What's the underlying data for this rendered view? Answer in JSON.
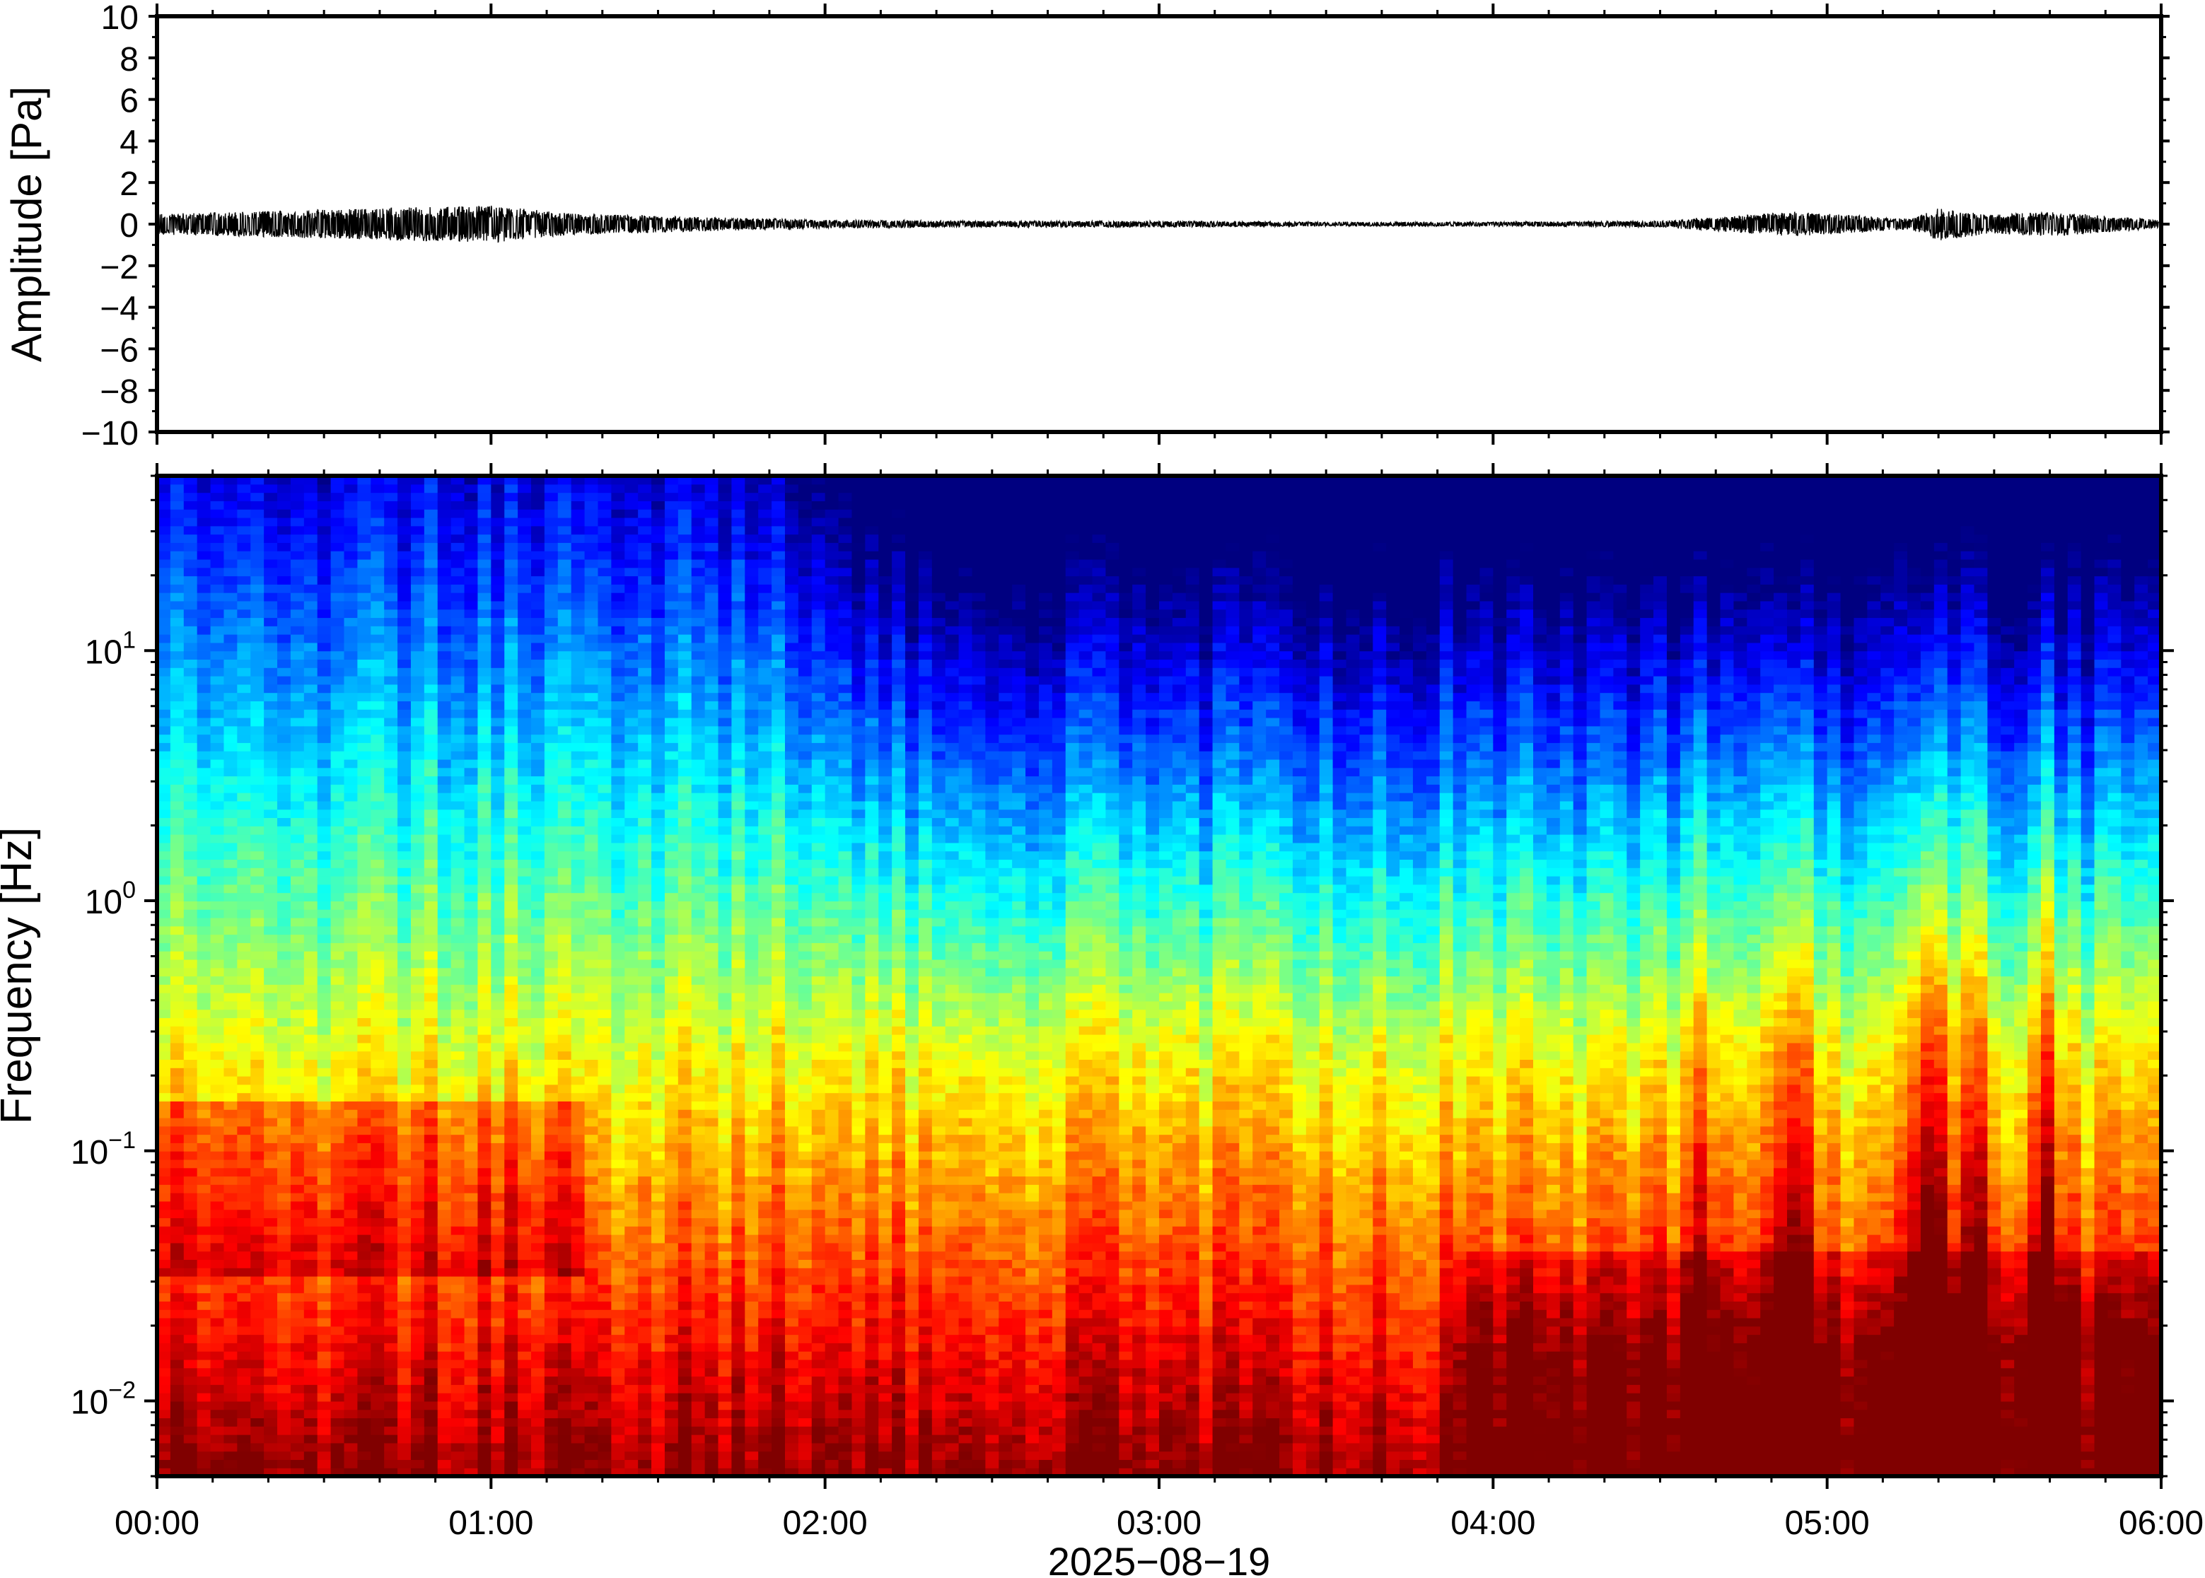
{
  "chart_data": [
    {
      "type": "line",
      "ylabel": "Amplitude [Pa]",
      "ylim": [
        -10,
        10
      ],
      "yticks": [
        "10",
        "8",
        "6",
        "4",
        "2",
        "0",
        "−2",
        "−4",
        "−6",
        "−8",
        "−10"
      ],
      "xlim": [
        "00:00",
        "06:00"
      ],
      "grid": false,
      "series": [
        {
          "x": [
            "00:00",
            "00:15",
            "00:30",
            "00:45",
            "01:00",
            "01:15",
            "01:30",
            "02:00",
            "02:30",
            "03:00",
            "03:30",
            "04:00",
            "04:30",
            "04:54",
            "05:15",
            "05:20",
            "05:30",
            "05:40",
            "06:00"
          ],
          "envelope": [
            0.5,
            0.6,
            0.7,
            0.8,
            0.9,
            0.5,
            0.4,
            0.2,
            0.15,
            0.15,
            0.1,
            0.1,
            0.15,
            0.6,
            0.25,
            0.8,
            0.45,
            0.6,
            0.2
          ]
        }
      ]
    },
    {
      "type": "heatmap",
      "ylabel": "Frequency [Hz]",
      "yscale": "log",
      "ylim": [
        0.005,
        50
      ],
      "yticks": [
        {
          "base": "10",
          "exp": "1"
        },
        {
          "base": "10",
          "exp": "0"
        },
        {
          "base": "10",
          "exp": "−1"
        },
        {
          "base": "10",
          "exp": "−2"
        }
      ],
      "colormap": "jet",
      "xlabel": "2025−08−19",
      "xticks": [
        "00:00",
        "01:00",
        "02:00",
        "03:00",
        "04:00",
        "05:00",
        "06:00"
      ]
    }
  ]
}
